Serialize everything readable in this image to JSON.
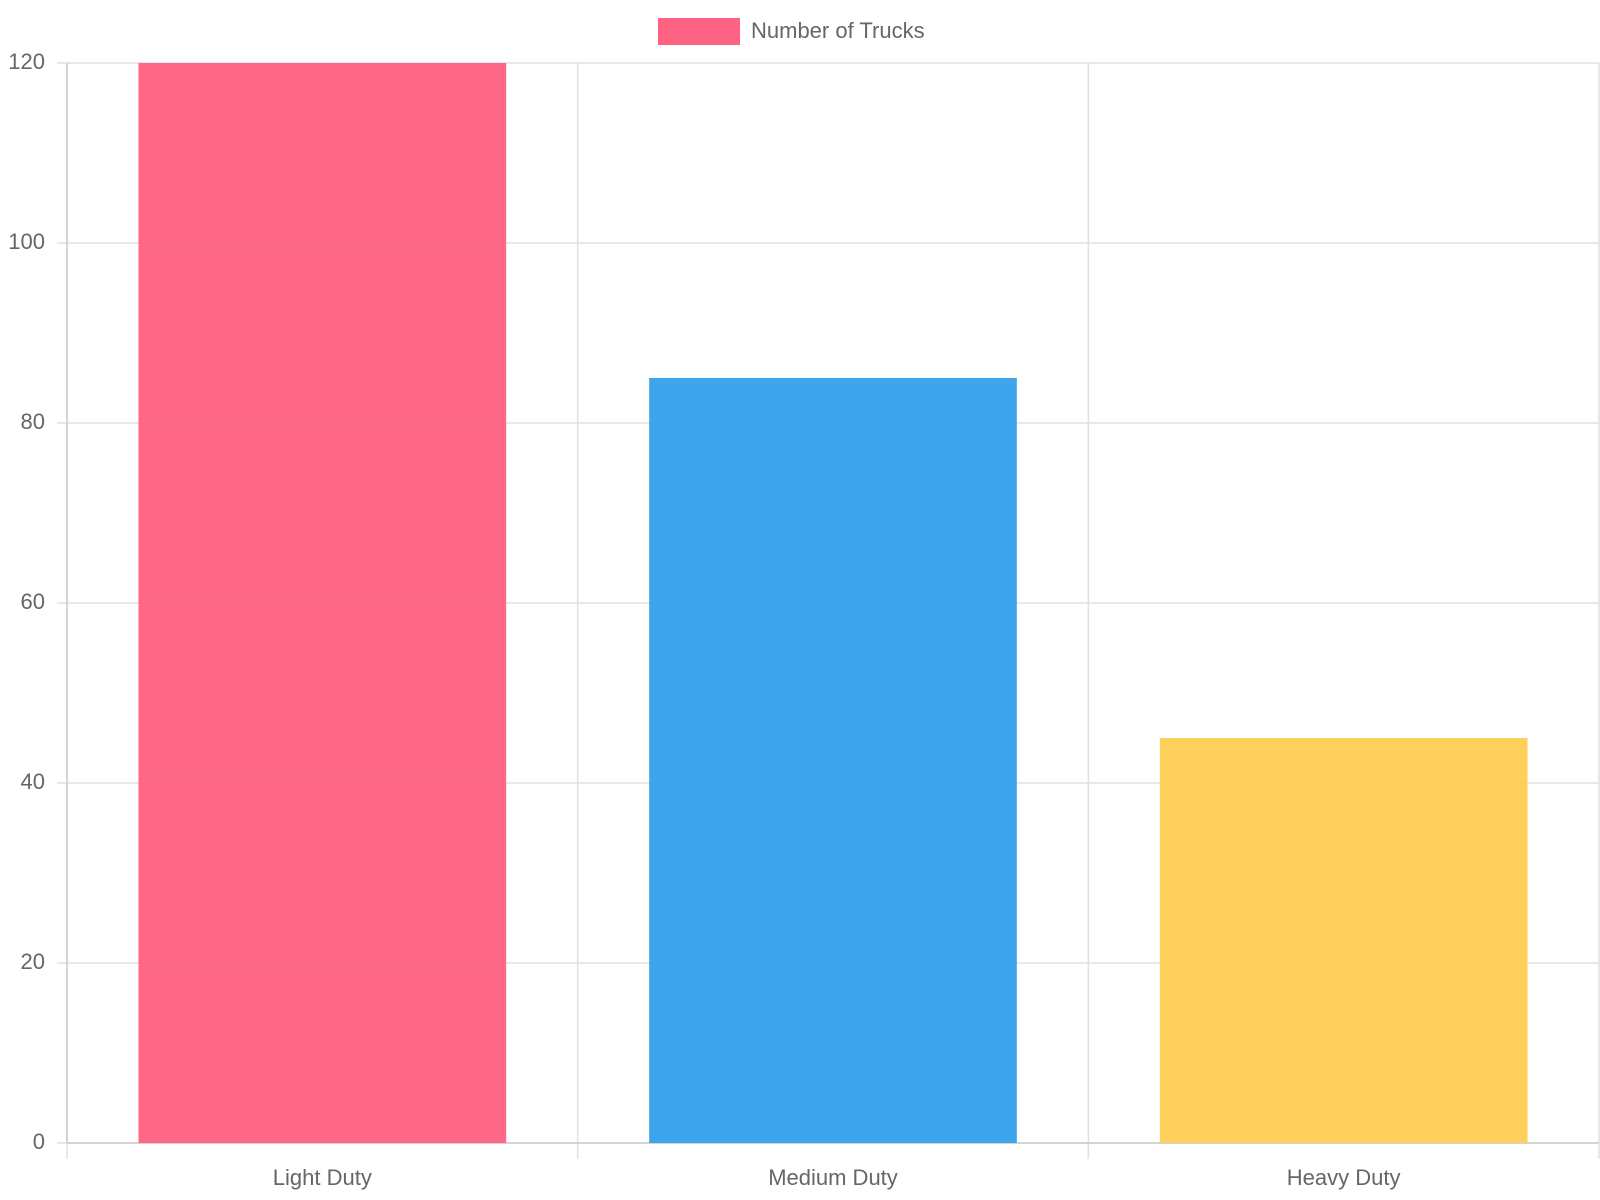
{
  "chart_data": {
    "type": "bar",
    "categories": [
      "Light Duty",
      "Medium Duty",
      "Heavy Duty"
    ],
    "series": [
      {
        "name": "Number of Trucks",
        "color": [
          "#ff6384",
          "#36a2eb",
          "#ffcd56"
        ],
        "values": [
          120,
          85,
          45
        ]
      }
    ],
    "ylim": [
      0,
      120
    ],
    "yticks": [
      0,
      20,
      40,
      60,
      80,
      100,
      120
    ],
    "grid": true,
    "legend": "top"
  }
}
